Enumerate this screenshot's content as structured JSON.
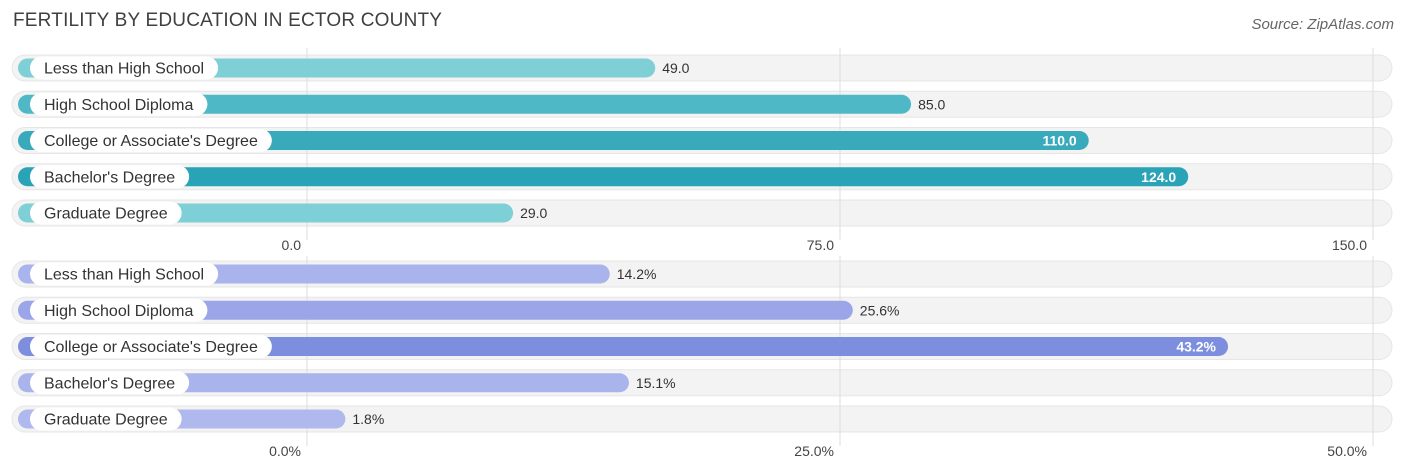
{
  "title": "FERTILITY BY EDUCATION IN ECTOR COUNTY",
  "source": "Source: ZipAtlas.com",
  "chart_data": [
    {
      "type": "bar",
      "orientation": "horizontal",
      "categories": [
        "Less than High School",
        "High School Diploma",
        "College or Associate's Degree",
        "Bachelor's Degree",
        "Graduate Degree"
      ],
      "values": [
        49.0,
        85.0,
        110.0,
        124.0,
        29.0
      ],
      "value_labels": [
        "49.0",
        "85.0",
        "110.0",
        "124.0",
        "29.0"
      ],
      "xlim": [
        0,
        150
      ],
      "ticks": [
        0,
        75,
        150
      ],
      "tick_labels": [
        "0.0",
        "75.0",
        "150.0"
      ],
      "colors": [
        "#7fcfd6",
        "#4fb8c6",
        "#38aabb",
        "#29a3b6",
        "#7fcfd6"
      ],
      "grid": true
    },
    {
      "type": "bar",
      "orientation": "horizontal",
      "categories": [
        "Less than High School",
        "High School Diploma",
        "College or Associate's Degree",
        "Bachelor's Degree",
        "Graduate Degree"
      ],
      "values": [
        14.2,
        25.6,
        43.2,
        15.1,
        1.8
      ],
      "value_labels": [
        "14.2%",
        "25.6%",
        "43.2%",
        "15.1%",
        "1.8%"
      ],
      "xlim": [
        0,
        50
      ],
      "ticks": [
        0,
        25,
        50
      ],
      "tick_labels": [
        "0.0%",
        "25.0%",
        "50.0%"
      ],
      "colors": [
        "#a9b3ec",
        "#9aa6e7",
        "#7d8ede",
        "#a9b3ec",
        "#b0b9ee"
      ],
      "grid": true
    }
  ]
}
